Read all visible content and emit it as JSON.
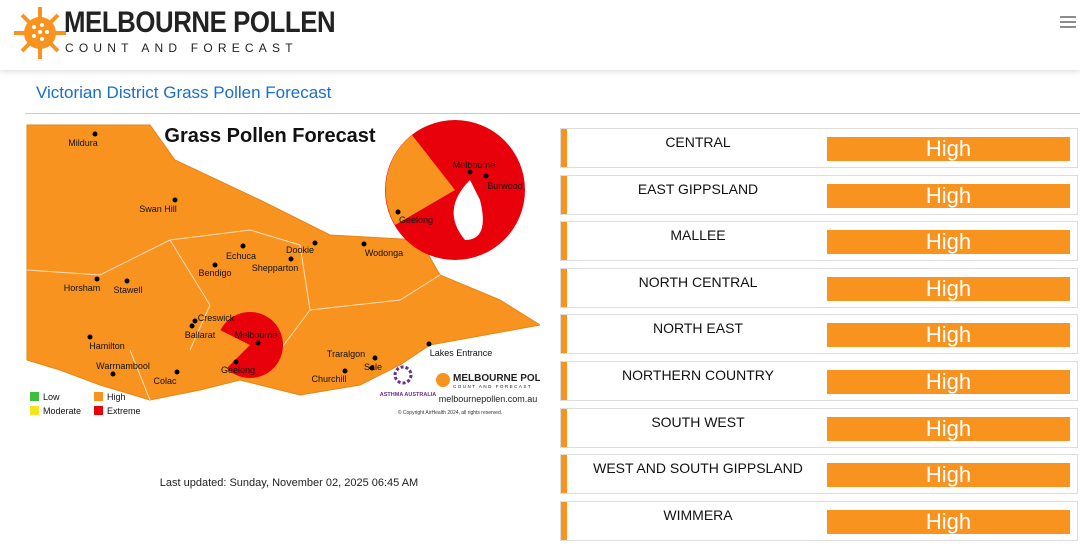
{
  "header": {
    "title": "MELBOURNE POLLEN",
    "subtitle": "COUNT AND FORECAST"
  },
  "section_title": "Victorian District Grass Pollen Forecast",
  "map": {
    "title": "Grass Pollen Forecast",
    "towns": [
      "Mildura",
      "Swan Hill",
      "Echuca",
      "Dookie",
      "Shepparton",
      "Wodonga",
      "Bendigo",
      "Horsham",
      "Stawell",
      "Creswick",
      "Ballarat",
      "Hamilton",
      "Warrnambool",
      "Colac",
      "Geelong",
      "Melbourne",
      "Traralgon",
      "Sale",
      "Churchill",
      "Lakes Entrance"
    ],
    "inset_towns": [
      "Melbourne",
      "Burwood",
      "Geelong"
    ],
    "legend": [
      "Low",
      "High",
      "Moderate",
      "Extreme"
    ],
    "logo_asthma": "ASTHMA AUSTRALIA",
    "logo_title": "MELBOURNE POLLEN",
    "logo_subtitle": "COUNT AND FORECAST",
    "website": "melbournepollen.com.au",
    "copyright": "© Copyright AirHealth 2024, all rights reserved."
  },
  "last_updated": "Last updated: Sunday, November 02, 2025 06:45 AM",
  "districts": [
    {
      "name": "CENTRAL",
      "level": "High"
    },
    {
      "name": "EAST GIPPSLAND",
      "level": "High"
    },
    {
      "name": "MALLEE",
      "level": "High"
    },
    {
      "name": "NORTH CENTRAL",
      "level": "High"
    },
    {
      "name": "NORTH EAST",
      "level": "High"
    },
    {
      "name": "NORTHERN COUNTRY",
      "level": "High"
    },
    {
      "name": "SOUTH WEST",
      "level": "High"
    },
    {
      "name": "WEST AND SOUTH GIPPSLAND",
      "level": "High"
    },
    {
      "name": "WIMMERA",
      "level": "High"
    }
  ]
}
